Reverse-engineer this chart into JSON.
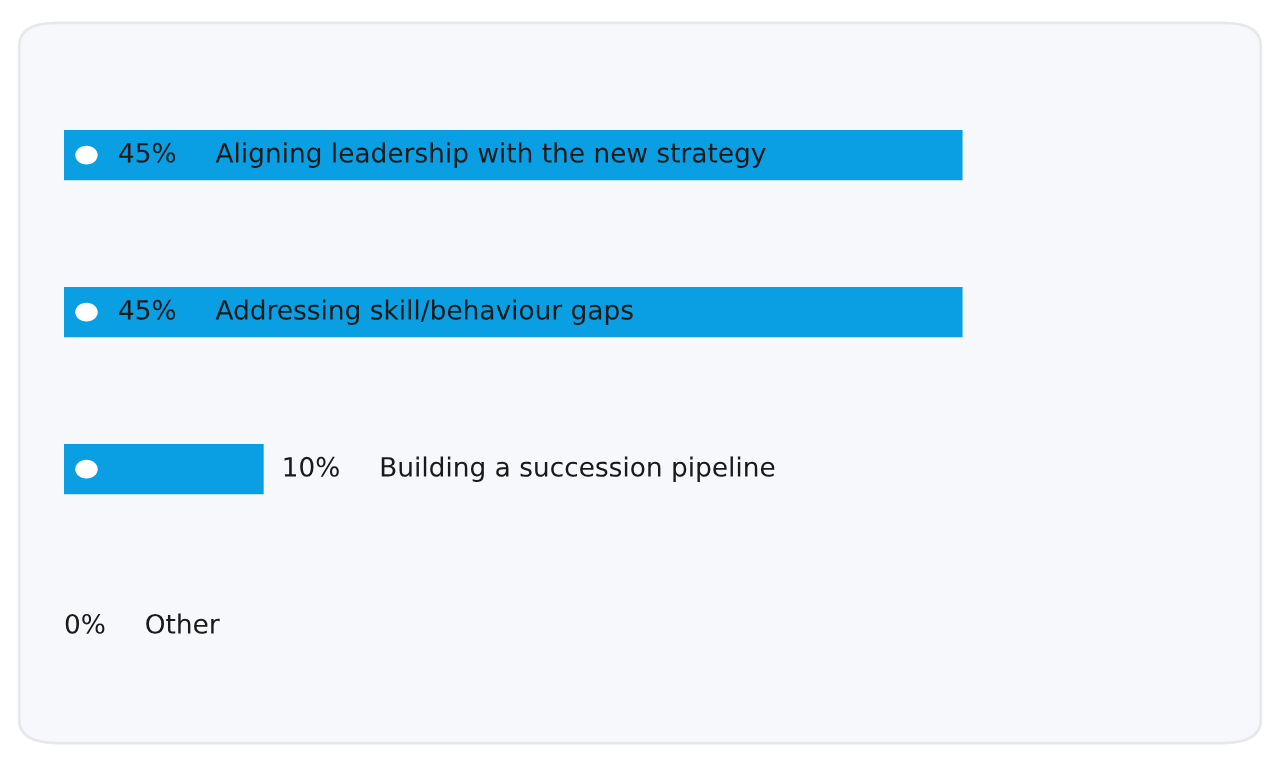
{
  "chart_data": {
    "type": "bar",
    "orientation": "horizontal",
    "categories": [
      "Aligning leadership with the new strategy",
      "Addressing skill/behaviour gaps",
      "Building a succession pipeline",
      "Other"
    ],
    "values": [
      45,
      45,
      10,
      0
    ],
    "value_labels": [
      "45%",
      "45%",
      "10%",
      "0%"
    ],
    "color": "#0a9fe2"
  }
}
